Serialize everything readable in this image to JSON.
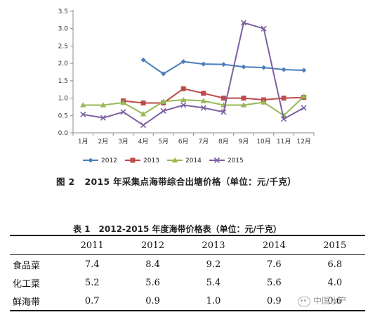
{
  "chart_data": {
    "type": "line",
    "categories": [
      "1月",
      "2月",
      "3月",
      "4月",
      "5月",
      "6月",
      "7月",
      "8月",
      "9月",
      "10月",
      "11月",
      "12月"
    ],
    "yticks": [
      "0.0",
      "0.5",
      "1.0",
      "1.5",
      "2.0",
      "2.5",
      "3.0",
      "3.5"
    ],
    "ylim": [
      0,
      3.5
    ],
    "grid": false,
    "legend_placement": "bottom",
    "series": [
      {
        "name": "2012",
        "color": "#4a7ebb",
        "marker": "diamond",
        "values": [
          null,
          null,
          null,
          2.1,
          1.7,
          2.05,
          1.98,
          1.97,
          1.9,
          1.88,
          1.82,
          1.8
        ]
      },
      {
        "name": "2013",
        "color": "#be4b48",
        "marker": "square",
        "values": [
          null,
          null,
          0.92,
          0.86,
          0.86,
          1.27,
          1.14,
          1.0,
          1.0,
          0.95,
          1.0,
          1.02
        ]
      },
      {
        "name": "2014",
        "color": "#98b954",
        "marker": "triangle",
        "values": [
          0.8,
          0.8,
          0.87,
          0.54,
          0.9,
          0.95,
          0.92,
          0.8,
          0.8,
          0.88,
          0.5,
          1.05
        ]
      },
      {
        "name": "2015",
        "color": "#7d60a0",
        "marker": "x",
        "values": [
          0.53,
          0.43,
          0.6,
          0.22,
          0.63,
          0.8,
          0.72,
          0.6,
          3.17,
          3.0,
          0.4,
          0.72
        ]
      }
    ]
  },
  "figure_caption": {
    "number": "图 2",
    "text": "2015 年采集点海带综合出塘价格（单位：元/千克）"
  },
  "table": {
    "number": "表 1",
    "title": "2012-2015 年度海带价格表（单位：元/千克）",
    "columns": [
      "",
      "2011",
      "2012",
      "2013",
      "2014",
      "2015"
    ],
    "rows": [
      [
        "食品菜",
        "7.4",
        "8.4",
        "9.2",
        "7.6",
        "6.8"
      ],
      [
        "化工菜",
        "5.2",
        "5.6",
        "5.4",
        "5.6",
        "4.0"
      ],
      [
        "鲜海带",
        "0.7",
        "0.9",
        "1.0",
        "0.9",
        "0.6"
      ]
    ]
  },
  "watermark": "中国水产"
}
